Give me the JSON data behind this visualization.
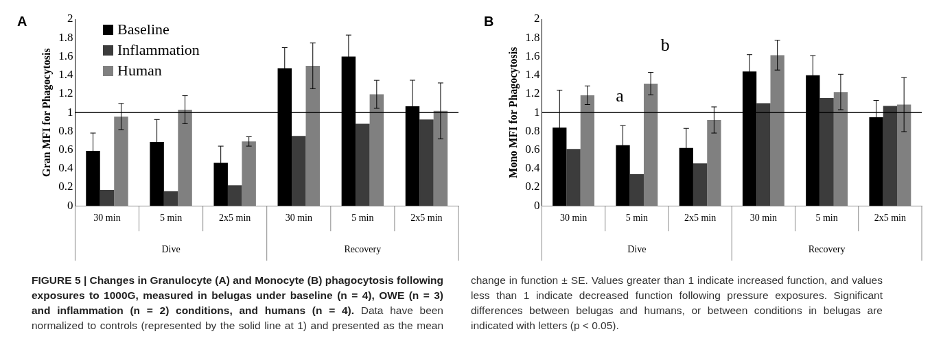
{
  "chart_data": [
    {
      "type": "bar",
      "title": "A",
      "ylabel": "Gran MFI for Phagocytosis",
      "categories": [
        "30 min",
        "5 min",
        "2x5 min",
        "30 min",
        "5 min",
        "2x5 min"
      ],
      "series": [
        {
          "name": "Baseline",
          "color": "#000000",
          "values": [
            0.59,
            0.685,
            0.46,
            1.475,
            1.6,
            1.066
          ],
          "errors": [
            0.19,
            0.24,
            0.18,
            0.22,
            0.23,
            0.28
          ]
        },
        {
          "name": "Inflammation",
          "color": "#3c3c3c",
          "values": [
            0.17,
            0.155,
            0.22,
            0.75,
            0.88,
            0.925
          ]
        },
        {
          "name": "Human",
          "color": "#808080",
          "values": [
            0.957,
            1.03,
            0.69,
            1.5,
            1.195,
            1.017
          ],
          "errors": [
            0.14,
            0.15,
            0.05,
            0.245,
            0.15,
            0.3
          ]
        }
      ],
      "ylim": [
        0,
        2
      ],
      "yticks": [
        0,
        0.2,
        0.4,
        0.6,
        0.8,
        1,
        1.2,
        1.4,
        1.6,
        1.8,
        2
      ],
      "grid": false,
      "legend": "top left",
      "ref_lines": [
        {
          "axis": "y",
          "value": 1,
          "color": "#000000"
        }
      ],
      "annotations": [
        "Dive",
        "Recovery"
      ]
    },
    {
      "type": "bar",
      "title": "B",
      "ylabel": "Mono MFI for Phagocytosis",
      "categories": [
        "30 min",
        "5 min",
        "2x5 min",
        "30 min",
        "5 min",
        "2x5 min"
      ],
      "series": [
        {
          "color": "#000000",
          "values": [
            0.84,
            0.65,
            0.62,
            1.44,
            1.4,
            0.95
          ],
          "errors": [
            0.4,
            0.21,
            0.21,
            0.18,
            0.21,
            0.18
          ]
        },
        {
          "color": "#3c3c3c",
          "values": [
            0.61,
            0.34,
            0.455,
            1.1,
            1.155,
            1.07
          ]
        },
        {
          "color": "#808080",
          "values": [
            1.185,
            1.31,
            0.92,
            1.615,
            1.22,
            1.085
          ],
          "errors": [
            0.1,
            0.12,
            0.14,
            0.16,
            0.19,
            0.29
          ]
        }
      ],
      "ylim": [
        0,
        2
      ],
      "yticks": [
        0,
        0.2,
        0.4,
        0.6,
        0.8,
        1,
        1.2,
        1.4,
        1.6,
        1.8,
        2
      ],
      "grid": false,
      "ref_lines": [
        {
          "axis": "y",
          "value": 1,
          "color": "#000000"
        }
      ],
      "annotations": [
        "Dive",
        "Recovery",
        "a",
        "b"
      ]
    },
    {
      "type": "other",
      "title": "FIGURE 5 | Changes in Granulocyte (A) and Monocyte (B) phagocytosis following exposures to 1000G, measured in belugas under baseline (n = 4), OWE (n = 3) and inflammation (n = 2) conditions, and humans (n = 4).",
      "annotations": [
        "Data have been normalized to controls (represented by the solid line at 1) and presented as the mean change in function ± SE. Values greater than 1 indicate increased function, and values less than 1 indicate decreased function following pressure exposures. Significant differences between belugas and humans, or between conditions in belugas are indicated with letters (p < 0.05)."
      ]
    }
  ]
}
